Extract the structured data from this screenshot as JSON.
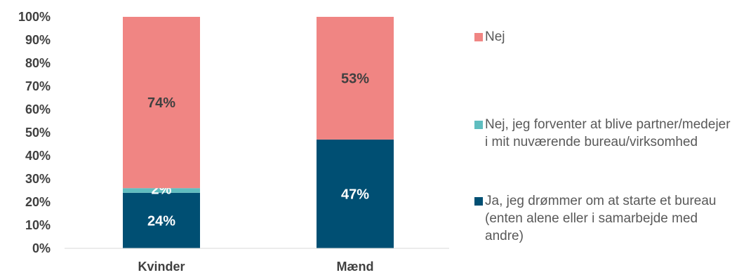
{
  "chart_data": {
    "type": "stacked-bar",
    "categories": [
      "Kvinder",
      "Mænd"
    ],
    "series": [
      {
        "name": "Ja, jeg drømmer om at starte et bureau (enten alene eller i samarbejde med andre)",
        "color": "#004f73",
        "label_color": "#ffffff",
        "values": [
          24,
          47
        ],
        "labels": [
          "24%",
          "47%"
        ]
      },
      {
        "name": "Nej, jeg forventer at blive partner/medejer i mit nuværende bureau/virksomhed",
        "color": "#5fbdbf",
        "label_color": "#ffffff",
        "values": [
          2,
          0
        ],
        "labels": [
          "2%",
          ""
        ]
      },
      {
        "name": "Nej",
        "color": "#f08583",
        "label_color": "#404040",
        "values": [
          74,
          53
        ],
        "labels": [
          "74%",
          "53%"
        ]
      }
    ],
    "ylim": [
      0,
      100
    ],
    "yticks": [
      0,
      10,
      20,
      30,
      40,
      50,
      60,
      70,
      80,
      90,
      100
    ],
    "ytick_labels": [
      "0%",
      "10%",
      "20%",
      "30%",
      "40%",
      "50%",
      "60%",
      "70%",
      "80%",
      "90%",
      "100%"
    ],
    "grid": false,
    "legend_position": "right",
    "legend_order": [
      "Nej",
      "Nej, jeg forventer at blive partner/medejer i mit nuværende bureau/virksomhed",
      "Ja, jeg drømmer om at starte et bureau (enten alene eller i samarbejde med andre)"
    ]
  }
}
